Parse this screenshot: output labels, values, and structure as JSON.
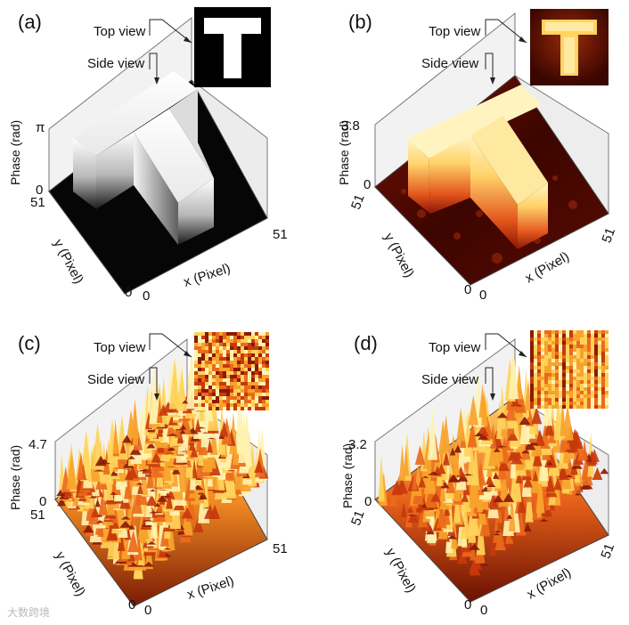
{
  "panels": [
    {
      "id": "a",
      "label": "(a)",
      "top_view_label": "Top view",
      "side_view_label": "Side view",
      "z_axis_label": "Phase (rad)",
      "z_max_label": "π",
      "z_min_label": "0",
      "y_axis_label": "y (Pixel)",
      "x_axis_label": "x (Pixel)",
      "y_max_label": "51",
      "x_max_label": "51",
      "y_origin_label": "0",
      "x_origin_label": "0",
      "style": "mono"
    },
    {
      "id": "b",
      "label": "(b)",
      "top_view_label": "Top view",
      "side_view_label": "Side view",
      "z_axis_label": "Phase (rad)",
      "z_max_label": "3.8",
      "z_min_label": "0",
      "y_axis_label": "y (Pixel)",
      "x_axis_label": "x (Pixel)",
      "y_max_label": "51",
      "x_max_label": "51",
      "y_origin_label": "0",
      "x_origin_label": "0",
      "style": "heat-T"
    },
    {
      "id": "c",
      "label": "(c)",
      "top_view_label": "Top view",
      "side_view_label": "Side view",
      "z_axis_label": "Phase (rad)",
      "z_max_label": "4.7",
      "z_min_label": "0",
      "y_axis_label": "y (Pixel)",
      "x_axis_label": "x (Pixel)",
      "y_max_label": "51",
      "x_max_label": "51",
      "y_origin_label": "0",
      "x_origin_label": "0",
      "style": "heat-random"
    },
    {
      "id": "d",
      "label": "(d)",
      "top_view_label": "Top view",
      "side_view_label": "Side view",
      "z_axis_label": "Phase (rad)",
      "z_max_label": "3.2",
      "z_min_label": "0",
      "y_axis_label": "y (Pixel)",
      "x_axis_label": "x (Pixel)",
      "y_max_label": "51",
      "x_max_label": "51",
      "y_origin_label": "0",
      "x_origin_label": "0",
      "style": "heat-stripes"
    }
  ],
  "watermark": "大数跨境"
}
